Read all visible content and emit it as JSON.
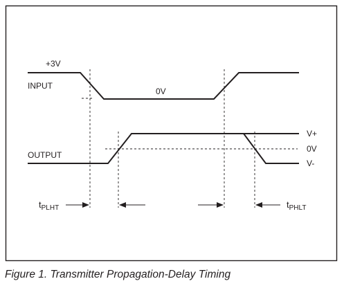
{
  "figure": {
    "labels": {
      "v3": "+3V",
      "input": "INPUT",
      "zero_input": "0V",
      "output": "OUTPUT",
      "v_plus": "V+",
      "zero_output": "0V",
      "v_minus": "V-"
    },
    "timing": {
      "plh": {
        "main": "t",
        "sub": "PLHT"
      },
      "phl": {
        "main": "t",
        "sub": "PHLT"
      }
    },
    "colors": {
      "ink": "#231f20",
      "frame": "#231f20",
      "background": "#ffffff"
    }
  },
  "caption": "Figure 1. Transmitter Propagation-Delay Timing"
}
